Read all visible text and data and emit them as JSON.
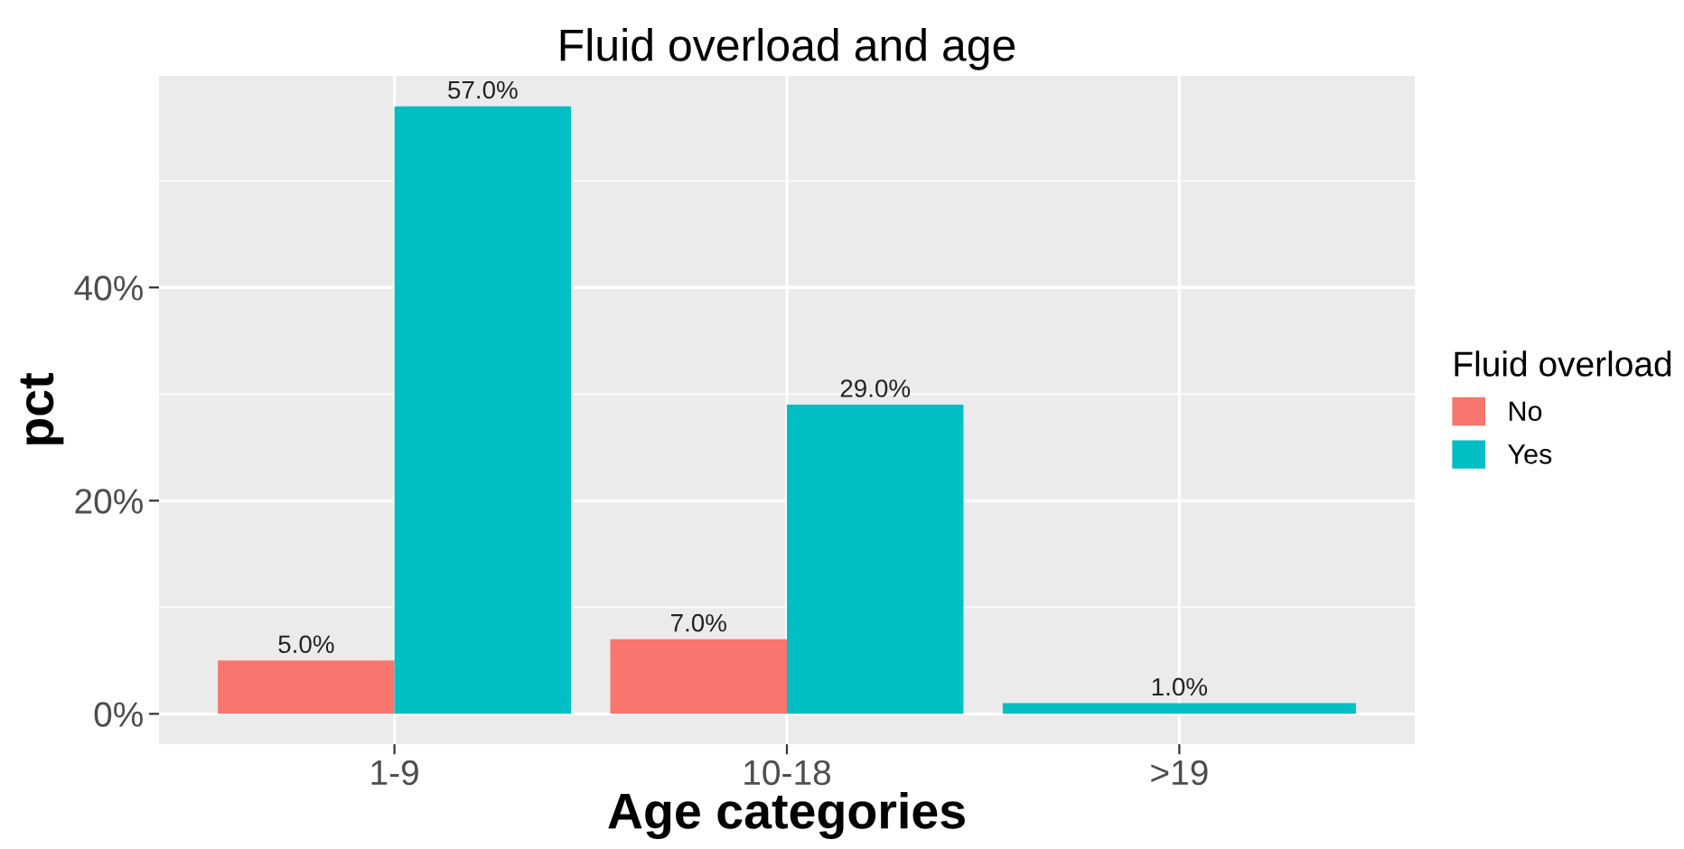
{
  "chart_data": {
    "type": "bar",
    "title": "Fluid overload and age",
    "xlabel": "Age categories",
    "ylabel": "pct",
    "legend_title": "Fluid overload",
    "categories": [
      "1-9",
      "10-18",
      ">19"
    ],
    "series": [
      {
        "name": "No",
        "color": "#f8766d",
        "values": [
          5.0,
          7.0,
          null
        ],
        "value_labels": [
          "5.0%",
          "7.0%",
          null
        ]
      },
      {
        "name": "Yes",
        "color": "#00bfc4",
        "values": [
          57.0,
          29.0,
          1.0
        ],
        "value_labels": [
          "57.0%",
          "29.0%",
          "1.0%"
        ]
      }
    ],
    "ylim": [
      -2.85,
      59.85
    ],
    "yticks": [
      {
        "value": 0,
        "label": "0%"
      },
      {
        "value": 10,
        "label": null
      },
      {
        "value": 20,
        "label": "20%"
      },
      {
        "value": 30,
        "label": null
      },
      {
        "value": 40,
        "label": "40%"
      },
      {
        "value": 50,
        "label": null
      }
    ],
    "grid": true,
    "legend": "right"
  }
}
